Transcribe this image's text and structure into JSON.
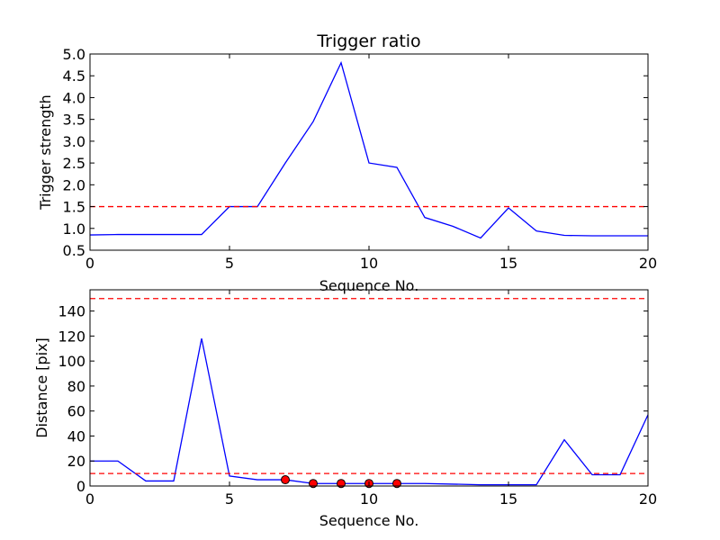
{
  "chart_data": [
    {
      "type": "line",
      "title": "Trigger ratio",
      "xlabel": "Sequence No.",
      "ylabel": "Trigger strength",
      "xlim": [
        0,
        20
      ],
      "ylim": [
        0.5,
        5.0
      ],
      "xticks": [
        0,
        5,
        10,
        15,
        20
      ],
      "xtick_labels": [
        "0",
        "5",
        "10",
        "15",
        "20"
      ],
      "yticks": [
        0.5,
        1.0,
        1.5,
        2.0,
        2.5,
        3.0,
        3.5,
        4.0,
        4.5,
        5.0
      ],
      "ytick_labels": [
        "0.5",
        "1.0",
        "1.5",
        "2.0",
        "2.5",
        "3.0",
        "3.5",
        "4.0",
        "4.5",
        "5.0"
      ],
      "grid": false,
      "series": [
        {
          "color": "#0000ff",
          "style": "solid",
          "x": [
            0,
            1,
            2,
            3,
            4,
            5,
            6,
            7,
            8,
            9,
            10,
            11,
            12,
            13,
            14,
            15,
            16,
            17,
            18,
            19,
            20
          ],
          "values": [
            0.85,
            0.86,
            0.86,
            0.86,
            0.86,
            1.5,
            1.5,
            2.5,
            3.45,
            4.8,
            2.5,
            2.4,
            1.25,
            1.05,
            0.78,
            1.47,
            0.94,
            0.84,
            0.83,
            0.83,
            0.83
          ]
        }
      ],
      "hlines": [
        {
          "y": 1.5,
          "color": "#ff0000",
          "style": "dashed"
        }
      ],
      "markers": []
    },
    {
      "type": "line",
      "title": "",
      "xlabel": "Sequence No.",
      "ylabel": "Distance [pix]",
      "xlim": [
        0,
        20
      ],
      "ylim": [
        0,
        157
      ],
      "xticks": [
        0,
        5,
        10,
        15,
        20
      ],
      "xtick_labels": [
        "0",
        "5",
        "10",
        "15",
        "20"
      ],
      "yticks": [
        0,
        20,
        40,
        60,
        80,
        100,
        120,
        140
      ],
      "ytick_labels": [
        "0",
        "20",
        "40",
        "60",
        "80",
        "100",
        "120",
        "140"
      ],
      "grid": false,
      "series": [
        {
          "color": "#0000ff",
          "style": "solid",
          "x": [
            0,
            1,
            2,
            3,
            4,
            5,
            6,
            7,
            8,
            9,
            10,
            11,
            12,
            13,
            14,
            15,
            16,
            17,
            18,
            19,
            20
          ],
          "values": [
            20,
            20,
            4,
            4,
            118,
            8,
            5,
            5,
            2,
            2,
            2,
            2,
            2,
            1.5,
            1,
            1,
            1,
            37,
            9,
            9,
            57
          ]
        }
      ],
      "hlines": [
        {
          "y": 150,
          "color": "#ff0000",
          "style": "dashed"
        },
        {
          "y": 10,
          "color": "#ff0000",
          "style": "dashed"
        }
      ],
      "markers": [
        {
          "x": 7,
          "y": 5,
          "color": "#ff0000"
        },
        {
          "x": 8,
          "y": 2,
          "color": "#ff0000"
        },
        {
          "x": 9,
          "y": 2,
          "color": "#ff0000"
        },
        {
          "x": 10,
          "y": 2,
          "color": "#ff0000"
        },
        {
          "x": 11,
          "y": 2,
          "color": "#ff0000"
        }
      ]
    }
  ]
}
